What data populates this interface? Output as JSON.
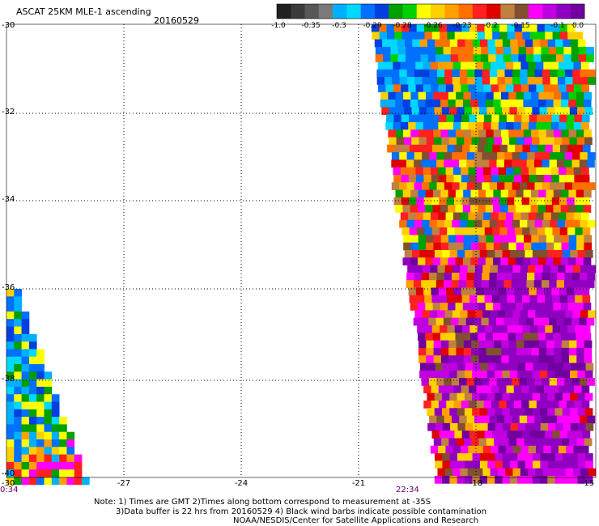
{
  "header": {
    "title": "ASCAT 25KM MLE-1 ascending",
    "date": "20160529"
  },
  "colorbar": {
    "labels": [
      "-1.0",
      "-0.35",
      "-0.3",
      "-0.29",
      "-0.28",
      "-0.26",
      "-0.23",
      "-0.2",
      "-0.15",
      "-0.1",
      "0.0"
    ],
    "colors": [
      "#202020",
      "#3a3a3a",
      "#585858",
      "#7a7a7a",
      "#00b0ff",
      "#00d8ff",
      "#0070ff",
      "#0040e0",
      "#00a000",
      "#00d000",
      "#ffff00",
      "#ffd000",
      "#ffa000",
      "#ff7000",
      "#ff2020",
      "#e00000",
      "#c08040",
      "#805030",
      "#ff00ff",
      "#c000e0",
      "#9000c0",
      "#7000a0"
    ]
  },
  "axes": {
    "lat_ticks": [
      "-30",
      "-32",
      "-34",
      "-36",
      "-38",
      "-40"
    ],
    "lon_ticks": [
      "-27",
      "-24",
      "-21",
      "-18",
      "-15"
    ],
    "lon_left": "-30"
  },
  "times": {
    "left": "0:34",
    "right": "22:34"
  },
  "notes": {
    "line1": "Note: 1) Times are GMT 2)Times along bottom correspond to measurement at -35S",
    "line2": "3)Data buffer is 22 hrs from 20160529 4) Black wind barbs indicate possible contamination",
    "line3": "NOAA/NESDIS/Center for Satellite Applications and Research"
  },
  "map_data": {
    "lat_range": [
      -40,
      -30
    ],
    "lon_range": [
      -30,
      -15
    ]
  }
}
